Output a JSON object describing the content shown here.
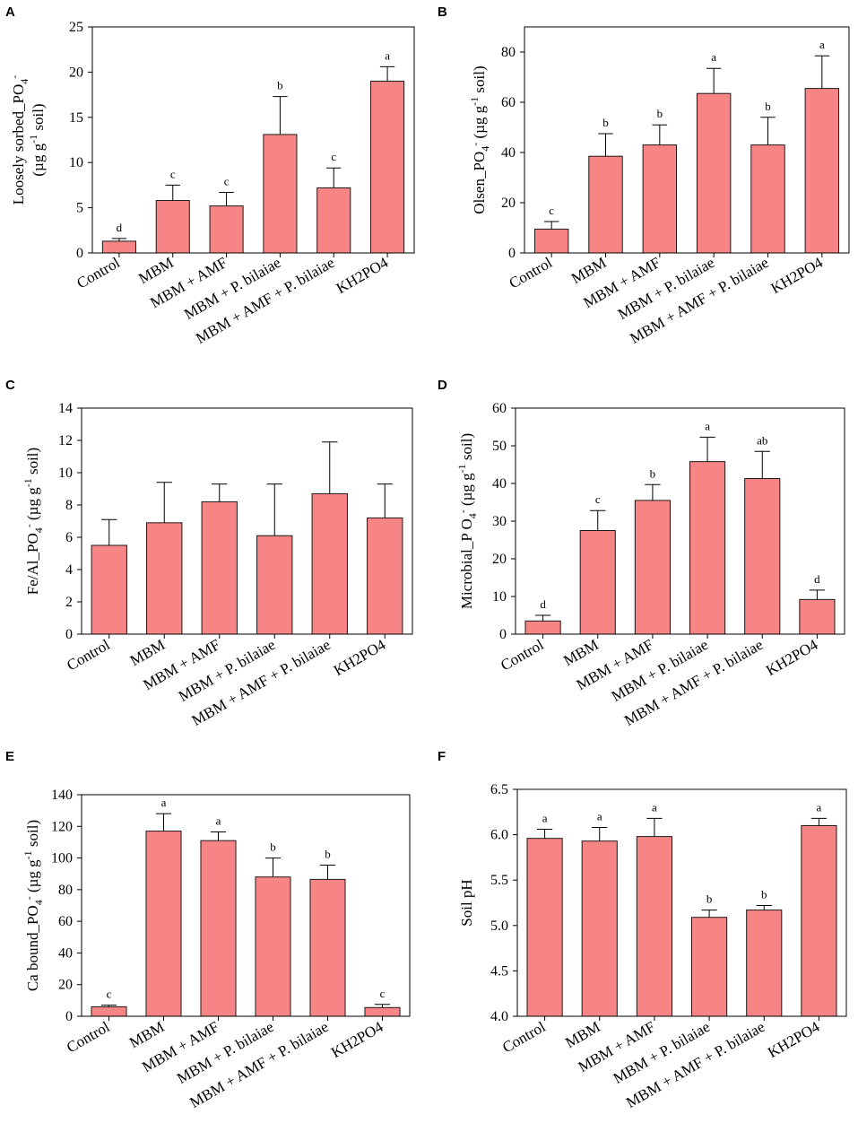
{
  "chart_data": [
    {
      "type": "bar",
      "panel": "A",
      "ylabel_line1": "Loosely sorbed_PO",
      "ylabel_line1_sub": "4",
      "ylabel_line1_sup": "-",
      "ylabel_line2": "(µg g",
      "ylabel_line2_sup": "-1",
      "ylabel_line2_end": "soil)",
      "ylim": [
        0,
        25
      ],
      "yticks": [
        0,
        5,
        10,
        15,
        20,
        25
      ],
      "categories": [
        "Control",
        "MBM",
        "MBM + AMF",
        "MBM + P. bilaiae",
        "MBM + AMF + P. bilaiae",
        "KH2PO4"
      ],
      "values": [
        1.3,
        5.8,
        5.2,
        13.1,
        7.2,
        19.0
      ],
      "errors": [
        0.3,
        1.7,
        1.5,
        4.2,
        2.2,
        1.6
      ],
      "letters": [
        "d",
        "c",
        "c",
        "b",
        "c",
        "a"
      ]
    },
    {
      "type": "bar",
      "panel": "B",
      "ylabel_text": "Olsen_PO",
      "ylabel_sub": "4",
      "ylabel_sup": "-",
      "ylabel_unit": "(µg g",
      "ylabel_unit_sup": "-1",
      "ylabel_unit_end": "soil)",
      "ylim": [
        0,
        90
      ],
      "yticks": [
        0,
        20,
        40,
        60,
        80
      ],
      "categories": [
        "Control",
        "MBM",
        "MBM + AMF",
        "MBM + P. bilaiae",
        "MBM + AMF + P. bilaiae",
        "KH2PO4"
      ],
      "values": [
        9.5,
        38.5,
        43.0,
        63.5,
        43.0,
        65.5
      ],
      "errors": [
        3.0,
        9.0,
        8.0,
        10.0,
        11.0,
        13.0
      ],
      "letters": [
        "c",
        "b",
        "b",
        "a",
        "b",
        "a"
      ]
    },
    {
      "type": "bar",
      "panel": "C",
      "ylabel_text": "Fe/Al_PO",
      "ylabel_sub": "4",
      "ylabel_sup": "-",
      "ylabel_unit": "(µg g",
      "ylabel_unit_sup": "-1",
      "ylabel_unit_end": "soil)",
      "ylim": [
        0,
        14
      ],
      "yticks": [
        0,
        2,
        4,
        6,
        8,
        10,
        12,
        14
      ],
      "categories": [
        "Control",
        "MBM",
        "MBM + AMF",
        "MBM + P. bilaiae",
        "MBM + AMF + P. bilaiae",
        "KH2PO4"
      ],
      "values": [
        5.5,
        6.9,
        8.2,
        6.1,
        8.7,
        7.2
      ],
      "errors": [
        1.6,
        2.5,
        1.1,
        3.2,
        3.2,
        2.1
      ],
      "letters": [
        "",
        "",
        "",
        "",
        "",
        ""
      ]
    },
    {
      "type": "bar",
      "panel": "D",
      "ylabel_text": "Microbial_P O",
      "ylabel_sub": "4",
      "ylabel_sup": "-",
      "ylabel_unit": "(µg g",
      "ylabel_unit_sup": "-1",
      "ylabel_unit_end": "soil)",
      "ylim": [
        0,
        60
      ],
      "yticks": [
        0,
        10,
        20,
        30,
        40,
        50,
        60
      ],
      "categories": [
        "Control",
        "MBM",
        "MBM + AMF",
        "MBM + P. bilaiae",
        "MBM + AMF + P. bilaiae",
        "KH2PO4"
      ],
      "values": [
        3.5,
        27.5,
        35.5,
        45.8,
        41.3,
        9.2
      ],
      "errors": [
        1.5,
        5.3,
        4.2,
        6.5,
        7.2,
        2.5
      ],
      "letters": [
        "d",
        "c",
        "b",
        "a",
        "ab",
        "d"
      ]
    },
    {
      "type": "bar",
      "panel": "E",
      "ylabel_text": "Ca bound_PO",
      "ylabel_sub": "4",
      "ylabel_sup": "-",
      "ylabel_unit": "(µg g",
      "ylabel_unit_sup": "-1",
      "ylabel_unit_end": "soil)",
      "ylim": [
        0,
        140
      ],
      "yticks": [
        0,
        20,
        40,
        60,
        80,
        100,
        120,
        140
      ],
      "categories": [
        "Control",
        "MBM",
        "MBM + AMF",
        "MBM + P. bilaiae",
        "MBM + AMF + P. bilaiae",
        "KH2PO4"
      ],
      "values": [
        6.0,
        117.0,
        111.0,
        88.0,
        86.5,
        5.5
      ],
      "errors": [
        1.0,
        11.0,
        5.5,
        12.0,
        9.0,
        2.0
      ],
      "letters": [
        "c",
        "a",
        "a",
        "b",
        "b",
        "c"
      ]
    },
    {
      "type": "bar",
      "panel": "F",
      "ylabel_text": "Soil pH",
      "ylim": [
        4.0,
        6.5
      ],
      "yticks": [
        "4.0",
        "4.5",
        "5.0",
        "5.5",
        "6.0",
        "6.5"
      ],
      "categories": [
        "Control",
        "MBM",
        "MBM + AMF",
        "MBM + P. bilaiae",
        "MBM + AMF + P. bilaiae",
        "KH2PO4"
      ],
      "values": [
        5.96,
        5.93,
        5.98,
        5.09,
        5.17,
        6.1
      ],
      "errors": [
        0.1,
        0.15,
        0.2,
        0.08,
        0.05,
        0.08
      ],
      "letters": [
        "a",
        "a",
        "a",
        "b",
        "b",
        "a"
      ]
    }
  ]
}
